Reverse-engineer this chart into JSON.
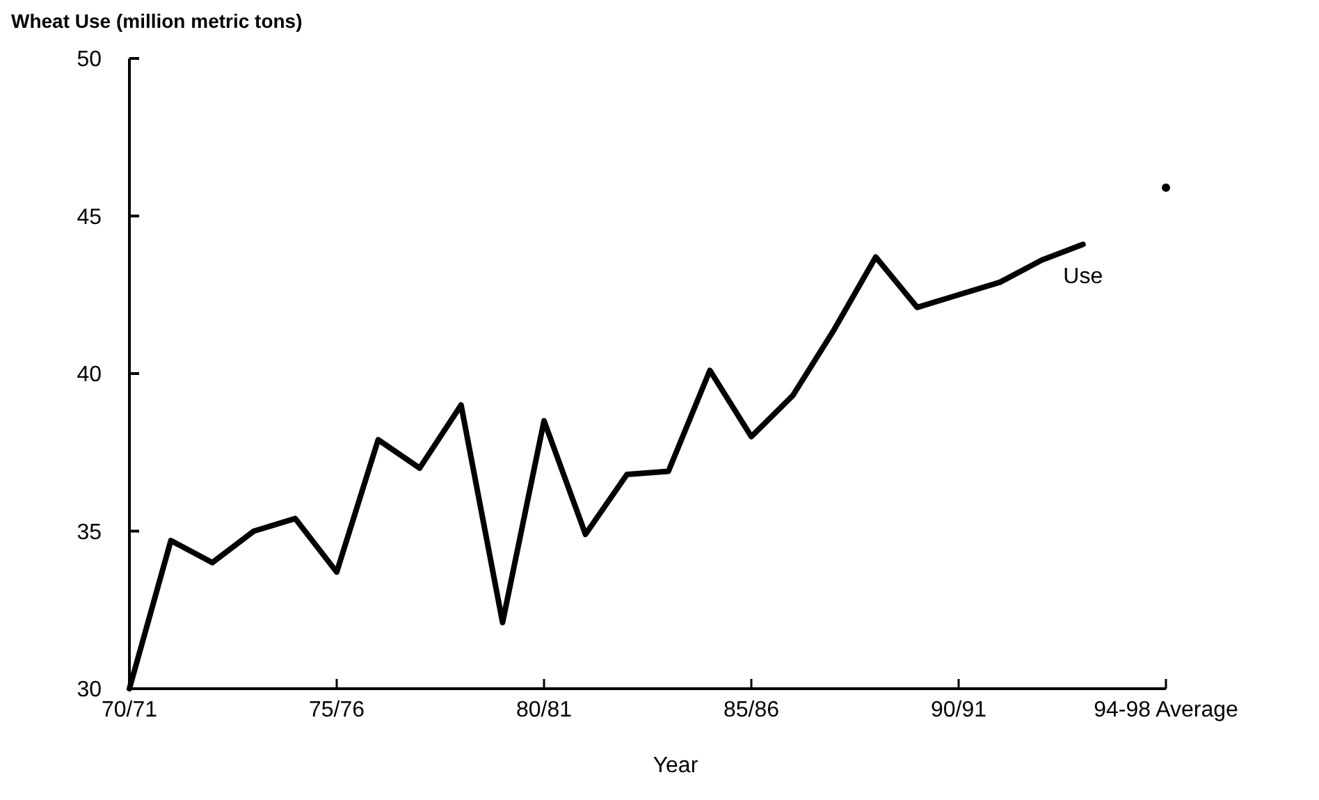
{
  "chart_data": {
    "type": "line",
    "ylabel": "Wheat Use (million metric tons)",
    "xlabel": "Year",
    "categories": [
      "70/71",
      null,
      null,
      null,
      null,
      "75/76",
      null,
      null,
      null,
      null,
      "80/81",
      null,
      null,
      null,
      null,
      "85/86",
      null,
      null,
      null,
      null,
      "90/91",
      null,
      null,
      null,
      null,
      "94-98 Average"
    ],
    "ylim": [
      30,
      50
    ],
    "yticks": [
      30,
      35,
      40,
      45,
      50
    ],
    "grid": false,
    "series": [
      {
        "name": "Use",
        "color": "#000000",
        "marker": "none",
        "line_style": "solid",
        "values": [
          30.0,
          34.7,
          34.0,
          35.0,
          35.4,
          33.7,
          37.9,
          37.0,
          39.0,
          32.1,
          38.5,
          34.9,
          36.8,
          36.9,
          40.1,
          38.0,
          39.3,
          41.4,
          43.7,
          42.1,
          42.5,
          42.9,
          43.6,
          44.1,
          null,
          null
        ]
      },
      {
        "type": "scatter",
        "color": "#000000",
        "marker": "circle",
        "values": [
          null,
          null,
          null,
          null,
          null,
          null,
          null,
          null,
          null,
          null,
          null,
          null,
          null,
          null,
          null,
          null,
          null,
          null,
          null,
          null,
          null,
          null,
          null,
          null,
          null,
          45.9
        ]
      }
    ]
  }
}
